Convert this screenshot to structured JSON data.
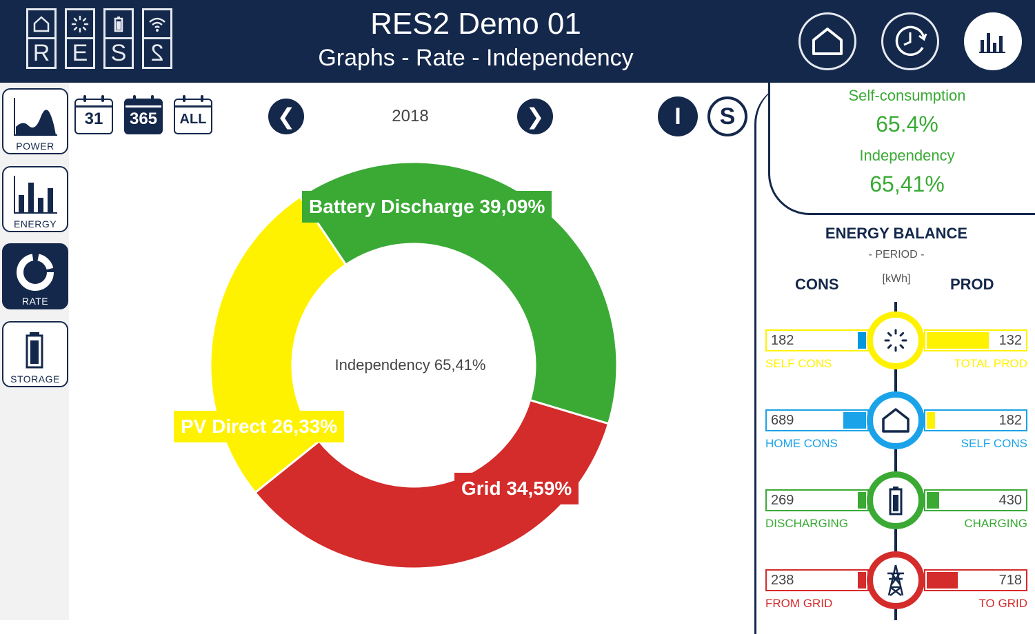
{
  "header": {
    "logo_letters": [
      "R",
      "E",
      "S",
      "2"
    ],
    "title": "RES2 Demo 01",
    "subtitle": "Graphs - Rate - Independency"
  },
  "header_buttons": [
    {
      "name": "home-icon"
    },
    {
      "name": "clock-icon"
    },
    {
      "name": "chart-icon",
      "active": true
    }
  ],
  "sidebar": {
    "items": [
      {
        "label": "POWER"
      },
      {
        "label": "ENERGY"
      },
      {
        "label": "RATE",
        "active": true
      },
      {
        "label": "STORAGE"
      }
    ]
  },
  "toolbar": {
    "periods": [
      "31",
      "365",
      "ALL"
    ],
    "active_period": "365",
    "year": "2018",
    "prev_icon": "chevron-left-icon",
    "next_icon": "chevron-right-icon",
    "mode_i": "I",
    "mode_s": "S"
  },
  "chart_data": {
    "type": "pie",
    "title": "Independency 65,41%",
    "categories": [
      "Battery Discharge",
      "Grid",
      "PV Direct"
    ],
    "values": [
      39.09,
      34.59,
      26.33
    ],
    "labels": [
      "Battery Discharge 39,09%",
      "Grid 34,59%",
      "PV Direct 26,33%"
    ],
    "colors": [
      "#3aaa35",
      "#d42b2b",
      "#fff200"
    ]
  },
  "metrics": {
    "self_consumption_label": "Self-consumption",
    "self_consumption_value": "65.4%",
    "independency_label": "Independency",
    "independency_value": "65,41%"
  },
  "energy_balance": {
    "title": "ENERGY BALANCE",
    "period": "- PERIOD -",
    "cons_label": "CONS",
    "prod_label": "PROD",
    "unit": "[kWh]",
    "rows": [
      {
        "left_value": "182",
        "left_caption": "SELF CONS",
        "right_value": "132",
        "right_caption": "TOTAL PROD",
        "color": "#fff200",
        "left_fill_color": "#0097e0",
        "left_fill": 0.08,
        "right_fill": 0.6,
        "icon": "sun-icon"
      },
      {
        "left_value": "689",
        "left_caption": "HOME CONS",
        "right_value": "182",
        "right_caption": "SELF CONS",
        "color": "#1aa3e8",
        "left_fill_color": "#1aa3e8",
        "right_fill_color": "#fff200",
        "left_fill": 0.22,
        "right_fill": 0.08,
        "icon": "home-icon"
      },
      {
        "left_value": "269",
        "left_caption": "DISCHARGING",
        "right_value": "430",
        "right_caption": "CHARGING",
        "color": "#3aaa35",
        "left_fill_color": "#3aaa35",
        "right_fill_color": "#3aaa35",
        "left_fill": 0.08,
        "right_fill": 0.12,
        "icon": "battery-icon"
      },
      {
        "left_value": "238",
        "left_caption": "FROM GRID",
        "right_value": "718",
        "right_caption": "TO GRID",
        "color": "#d42b2b",
        "left_fill_color": "#d42b2b",
        "right_fill_color": "#d42b2b",
        "left_fill": 0.08,
        "right_fill": 0.3,
        "icon": "pylon-icon"
      }
    ]
  }
}
